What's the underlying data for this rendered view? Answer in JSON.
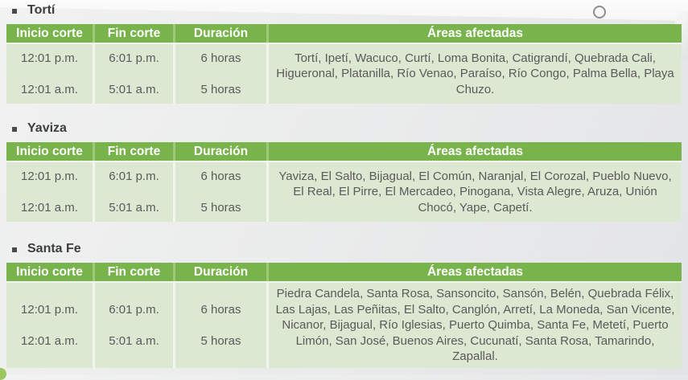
{
  "theme": {
    "header_bg": "#78b34b",
    "header_divider": "#9fc878",
    "header_text": "#ffffff",
    "cell_bg": "#dce8d2",
    "cell_gap": "#f2f6ee",
    "body_text": "#5a5a5a",
    "title_text": "#3e3e3e",
    "circle_stroke": "#8e8e8e",
    "corner_green": "#9cc75e"
  },
  "columns": [
    "Inicio corte",
    "Fin corte",
    "Duración",
    "Áreas afectadas"
  ],
  "tables": [
    {
      "title": "Tortí",
      "rows": [
        {
          "inicio": "12:01 p.m.",
          "fin": "6:01 p.m.",
          "duracion": "6 horas"
        },
        {
          "inicio": "12:01 a.m.",
          "fin": "5:01 a.m.",
          "duracion": "5 horas"
        }
      ],
      "areas": "Tortí, Ipetí, Wacuco, Curtí, Loma Bonita, Catigrandí, Quebrada Cali, Higueronal, Platanilla, Río Venao, Paraíso, Río Congo, Palma Bella, Playa Chuzo."
    },
    {
      "title": "Yaviza",
      "rows": [
        {
          "inicio": "12:01 p.m.",
          "fin": "6:01 p.m.",
          "duracion": "6 horas"
        },
        {
          "inicio": "12:01 a.m.",
          "fin": "5:01 a.m.",
          "duracion": "5 horas"
        }
      ],
      "areas": "Yaviza, El Salto, Bijagual, El Común, Naranjal, El Corozal, Pueblo Nuevo, El Real, El Pirre, El Mercadeo, Pinogana, Vista Alegre, Aruza, Unión Chocó, Yape, Capetí."
    },
    {
      "title": "Santa Fe",
      "rows": [
        {
          "inicio": "12:01 p.m.",
          "fin": "6:01 p.m.",
          "duracion": "6 horas"
        },
        {
          "inicio": "12:01 a.m.",
          "fin": "5:01 a.m.",
          "duracion": "5 horas"
        }
      ],
      "areas": "Piedra Candela, Santa Rosa, Sansoncito, Sansón, Belén, Quebrada Félix, Las Lajas, Las Peñitas, El Salto, Canglón, Arretí, La Moneda, San Vicente, Nicanor, Bijagual, Río Iglesias, Puerto Quimba, Santa Fe, Metetí, Puerto Limón, San José, Buenos Aires, Cucunatí, Santa Rosa, Tamarindo, Zapallal."
    }
  ]
}
